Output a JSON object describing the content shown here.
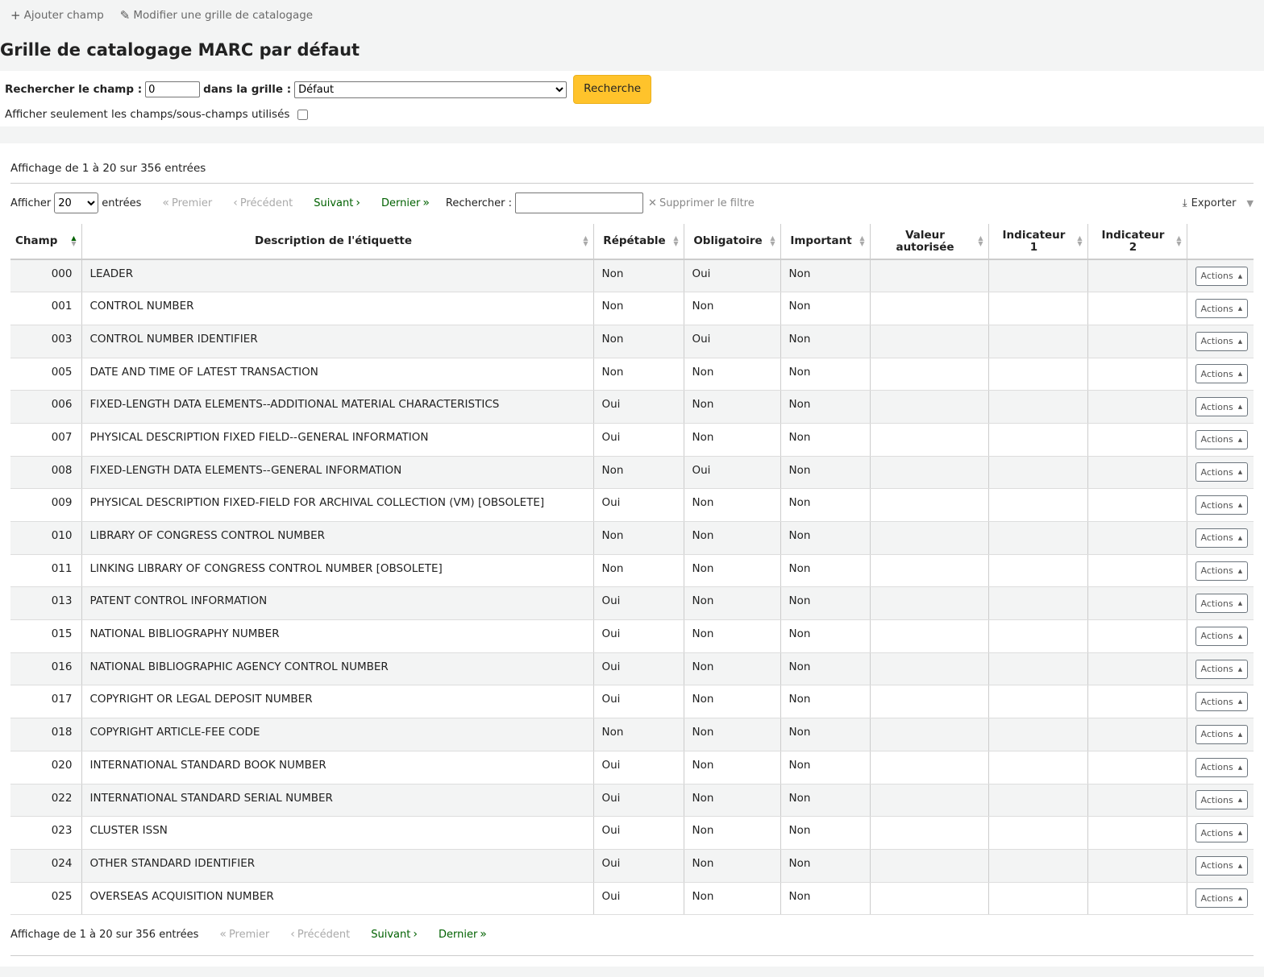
{
  "toolbar": {
    "add_field": "Ajouter champ",
    "edit_framework": "Modifier une grille de catalogage"
  },
  "page_title": "Grille de catalogage MARC par défaut",
  "search": {
    "label": "Rechercher le champ :",
    "value": "0",
    "in_grid_label": "dans la grille :",
    "grid_selected": "Défaut",
    "button": "Recherche",
    "only_used_label": "Afficher seulement les champs/sous-champs utilisés"
  },
  "table_info": "Affichage de 1 à 20 sur 356 entrées",
  "controls": {
    "show_label": "Afficher",
    "show_value": "20",
    "entries_label": "entrées",
    "first": "Premier",
    "previous": "Précédent",
    "next": "Suivant",
    "last": "Dernier",
    "filter_label": "Rechercher :",
    "clear_filter": "Supprimer le filtre",
    "export": "Exporter"
  },
  "columns": {
    "champ": "Champ",
    "description": "Description de l'étiquette",
    "repetable": "Répétable",
    "obligatoire": "Obligatoire",
    "important": "Important",
    "valeur_1": "Valeur",
    "valeur_2": "autorisée",
    "ind1_1": "Indicateur",
    "ind1_2": "1",
    "ind2_1": "Indicateur",
    "ind2_2": "2"
  },
  "actions_label": "Actions",
  "rows": [
    {
      "tag": "000",
      "desc": "LEADER",
      "rep": "Non",
      "mand": "Oui",
      "imp": "Non"
    },
    {
      "tag": "001",
      "desc": "CONTROL NUMBER",
      "rep": "Non",
      "mand": "Non",
      "imp": "Non"
    },
    {
      "tag": "003",
      "desc": "CONTROL NUMBER IDENTIFIER",
      "rep": "Non",
      "mand": "Oui",
      "imp": "Non"
    },
    {
      "tag": "005",
      "desc": "DATE AND TIME OF LATEST TRANSACTION",
      "rep": "Non",
      "mand": "Non",
      "imp": "Non"
    },
    {
      "tag": "006",
      "desc": "FIXED-LENGTH DATA ELEMENTS--ADDITIONAL MATERIAL CHARACTERISTICS",
      "rep": "Oui",
      "mand": "Non",
      "imp": "Non"
    },
    {
      "tag": "007",
      "desc": "PHYSICAL DESCRIPTION FIXED FIELD--GENERAL INFORMATION",
      "rep": "Oui",
      "mand": "Non",
      "imp": "Non"
    },
    {
      "tag": "008",
      "desc": "FIXED-LENGTH DATA ELEMENTS--GENERAL INFORMATION",
      "rep": "Non",
      "mand": "Oui",
      "imp": "Non"
    },
    {
      "tag": "009",
      "desc": "PHYSICAL DESCRIPTION FIXED-FIELD FOR ARCHIVAL COLLECTION (VM) [OBSOLETE]",
      "rep": "Oui",
      "mand": "Non",
      "imp": "Non"
    },
    {
      "tag": "010",
      "desc": "LIBRARY OF CONGRESS CONTROL NUMBER",
      "rep": "Non",
      "mand": "Non",
      "imp": "Non"
    },
    {
      "tag": "011",
      "desc": "LINKING LIBRARY OF CONGRESS CONTROL NUMBER [OBSOLETE]",
      "rep": "Non",
      "mand": "Non",
      "imp": "Non"
    },
    {
      "tag": "013",
      "desc": "PATENT CONTROL INFORMATION",
      "rep": "Oui",
      "mand": "Non",
      "imp": "Non"
    },
    {
      "tag": "015",
      "desc": "NATIONAL BIBLIOGRAPHY NUMBER",
      "rep": "Oui",
      "mand": "Non",
      "imp": "Non"
    },
    {
      "tag": "016",
      "desc": "NATIONAL BIBLIOGRAPHIC AGENCY CONTROL NUMBER",
      "rep": "Oui",
      "mand": "Non",
      "imp": "Non"
    },
    {
      "tag": "017",
      "desc": "COPYRIGHT OR LEGAL DEPOSIT NUMBER",
      "rep": "Oui",
      "mand": "Non",
      "imp": "Non"
    },
    {
      "tag": "018",
      "desc": "COPYRIGHT ARTICLE-FEE CODE",
      "rep": "Non",
      "mand": "Non",
      "imp": "Non"
    },
    {
      "tag": "020",
      "desc": "INTERNATIONAL STANDARD BOOK NUMBER",
      "rep": "Oui",
      "mand": "Non",
      "imp": "Non"
    },
    {
      "tag": "022",
      "desc": "INTERNATIONAL STANDARD SERIAL NUMBER",
      "rep": "Oui",
      "mand": "Non",
      "imp": "Non"
    },
    {
      "tag": "023",
      "desc": "CLUSTER ISSN",
      "rep": "Oui",
      "mand": "Non",
      "imp": "Non"
    },
    {
      "tag": "024",
      "desc": "OTHER STANDARD IDENTIFIER",
      "rep": "Oui",
      "mand": "Non",
      "imp": "Non"
    },
    {
      "tag": "025",
      "desc": "OVERSEAS ACQUISITION NUMBER",
      "rep": "Oui",
      "mand": "Non",
      "imp": "Non"
    }
  ]
}
